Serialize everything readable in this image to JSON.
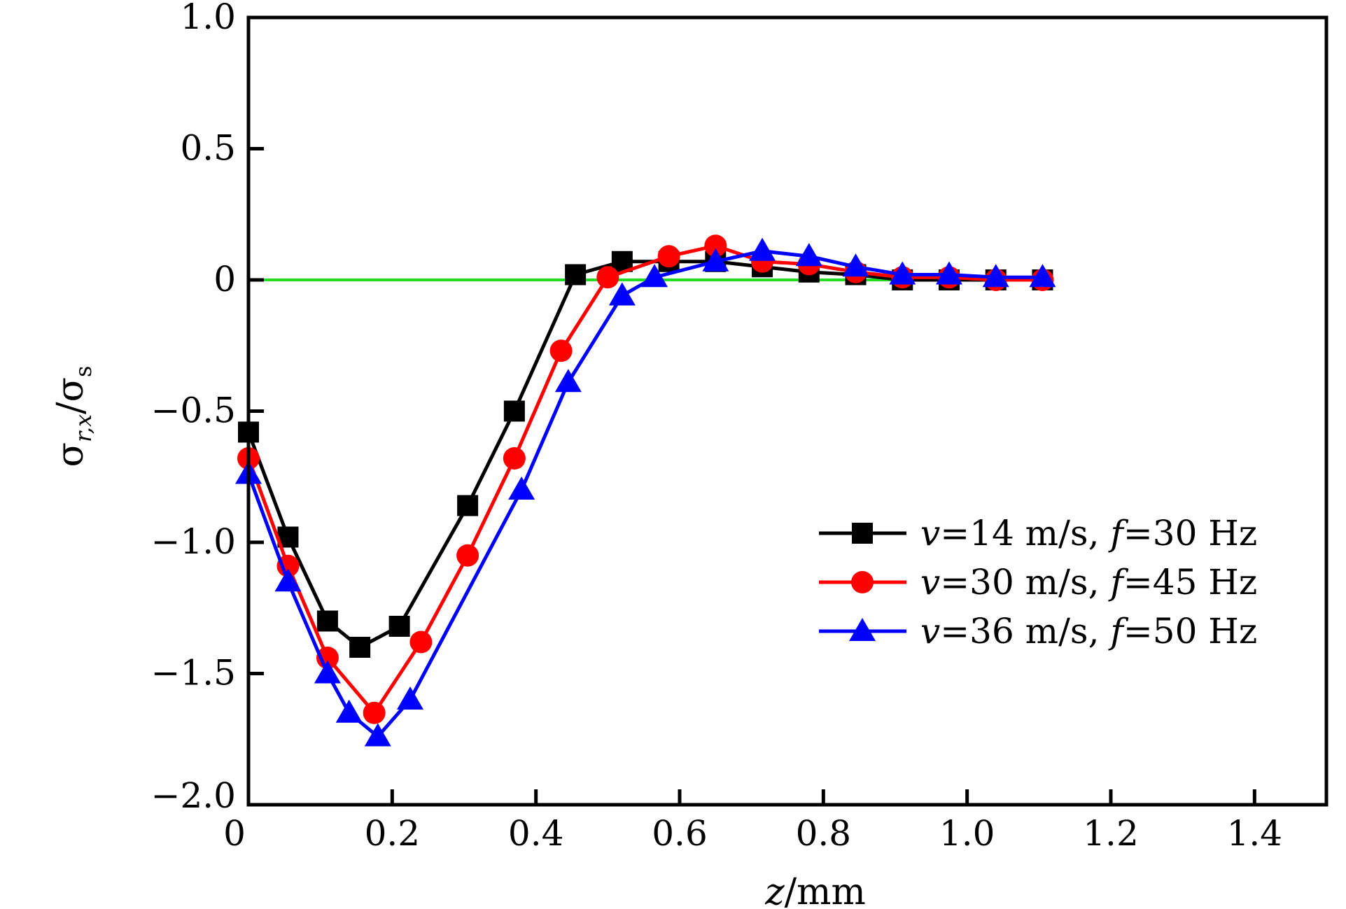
{
  "chart_data": {
    "type": "line",
    "xlabel": {
      "var": "z",
      "unit": "/mm"
    },
    "ylabel": {
      "num": "σ",
      "num_sub": "r,x",
      "sep": "/",
      "den": "σ",
      "den_sub": "s"
    },
    "xlim": [
      0,
      1.5
    ],
    "ylim": [
      -2.0,
      1.0
    ],
    "x_ticks": [
      0,
      0.2,
      0.4,
      0.6,
      0.8,
      1.0,
      1.2,
      1.4
    ],
    "x_tick_labels": [
      "0",
      "0.2",
      "0.4",
      "0.6",
      "0.8",
      "1.0",
      "1.2",
      "1.4"
    ],
    "y_ticks": [
      1.0,
      0.5,
      0,
      -0.5,
      -1.0,
      -1.5,
      -2.0
    ],
    "y_tick_labels": [
      "1.0",
      "0.5",
      "0",
      "−0.5",
      "−1.0",
      "−1.5",
      "−2.0"
    ],
    "grid": false,
    "legend_position": "right",
    "reference_line": {
      "y": 0,
      "color": "#22dd22"
    },
    "series": [
      {
        "name": {
          "v": "v",
          "v_text": "=14 m/s",
          "f": "f",
          "f_text": "=30 Hz"
        },
        "color": "#000000",
        "marker": "square",
        "points": [
          [
            0,
            -0.58
          ],
          [
            0.055,
            -0.98
          ],
          [
            0.11,
            -1.3
          ],
          [
            0.155,
            -1.4
          ],
          [
            0.21,
            -1.32
          ],
          [
            0.305,
            -0.86
          ],
          [
            0.37,
            -0.5
          ],
          [
            0.455,
            0.02
          ],
          [
            0.52,
            0.07
          ],
          [
            0.585,
            0.07
          ],
          [
            0.65,
            0.07
          ],
          [
            0.715,
            0.05
          ],
          [
            0.78,
            0.03
          ],
          [
            0.845,
            0.02
          ],
          [
            0.91,
            0.0
          ],
          [
            0.975,
            0.0
          ],
          [
            1.04,
            0.0
          ],
          [
            1.105,
            0.0
          ]
        ]
      },
      {
        "name": {
          "v": "v",
          "v_text": "=30 m/s",
          "f": "f",
          "f_text": "=45 Hz"
        },
        "color": "#ff0000",
        "marker": "circle",
        "points": [
          [
            0,
            -0.68
          ],
          [
            0.055,
            -1.09
          ],
          [
            0.11,
            -1.44
          ],
          [
            0.175,
            -1.65
          ],
          [
            0.24,
            -1.38
          ],
          [
            0.305,
            -1.05
          ],
          [
            0.37,
            -0.68
          ],
          [
            0.435,
            -0.27
          ],
          [
            0.5,
            0.01
          ],
          [
            0.585,
            0.09
          ],
          [
            0.65,
            0.13
          ],
          [
            0.715,
            0.07
          ],
          [
            0.78,
            0.06
          ],
          [
            0.845,
            0.03
          ],
          [
            0.91,
            0.01
          ],
          [
            0.975,
            0.01
          ],
          [
            1.04,
            0.0
          ],
          [
            1.105,
            0.0
          ]
        ]
      },
      {
        "name": {
          "v": "v",
          "v_text": "=36 m/s",
          "f": "f",
          "f_text": "=50 Hz"
        },
        "color": "#0000ff",
        "marker": "triangle",
        "points": [
          [
            0,
            -0.74
          ],
          [
            0.055,
            -1.15
          ],
          [
            0.11,
            -1.5
          ],
          [
            0.14,
            -1.65
          ],
          [
            0.18,
            -1.74
          ],
          [
            0.225,
            -1.6
          ],
          [
            0.38,
            -0.8
          ],
          [
            0.445,
            -0.39
          ],
          [
            0.52,
            -0.06
          ],
          [
            0.565,
            0.01
          ],
          [
            0.65,
            0.07
          ],
          [
            0.715,
            0.11
          ],
          [
            0.78,
            0.09
          ],
          [
            0.845,
            0.05
          ],
          [
            0.91,
            0.02
          ],
          [
            0.975,
            0.02
          ],
          [
            1.04,
            0.01
          ],
          [
            1.105,
            0.01
          ]
        ]
      }
    ]
  }
}
